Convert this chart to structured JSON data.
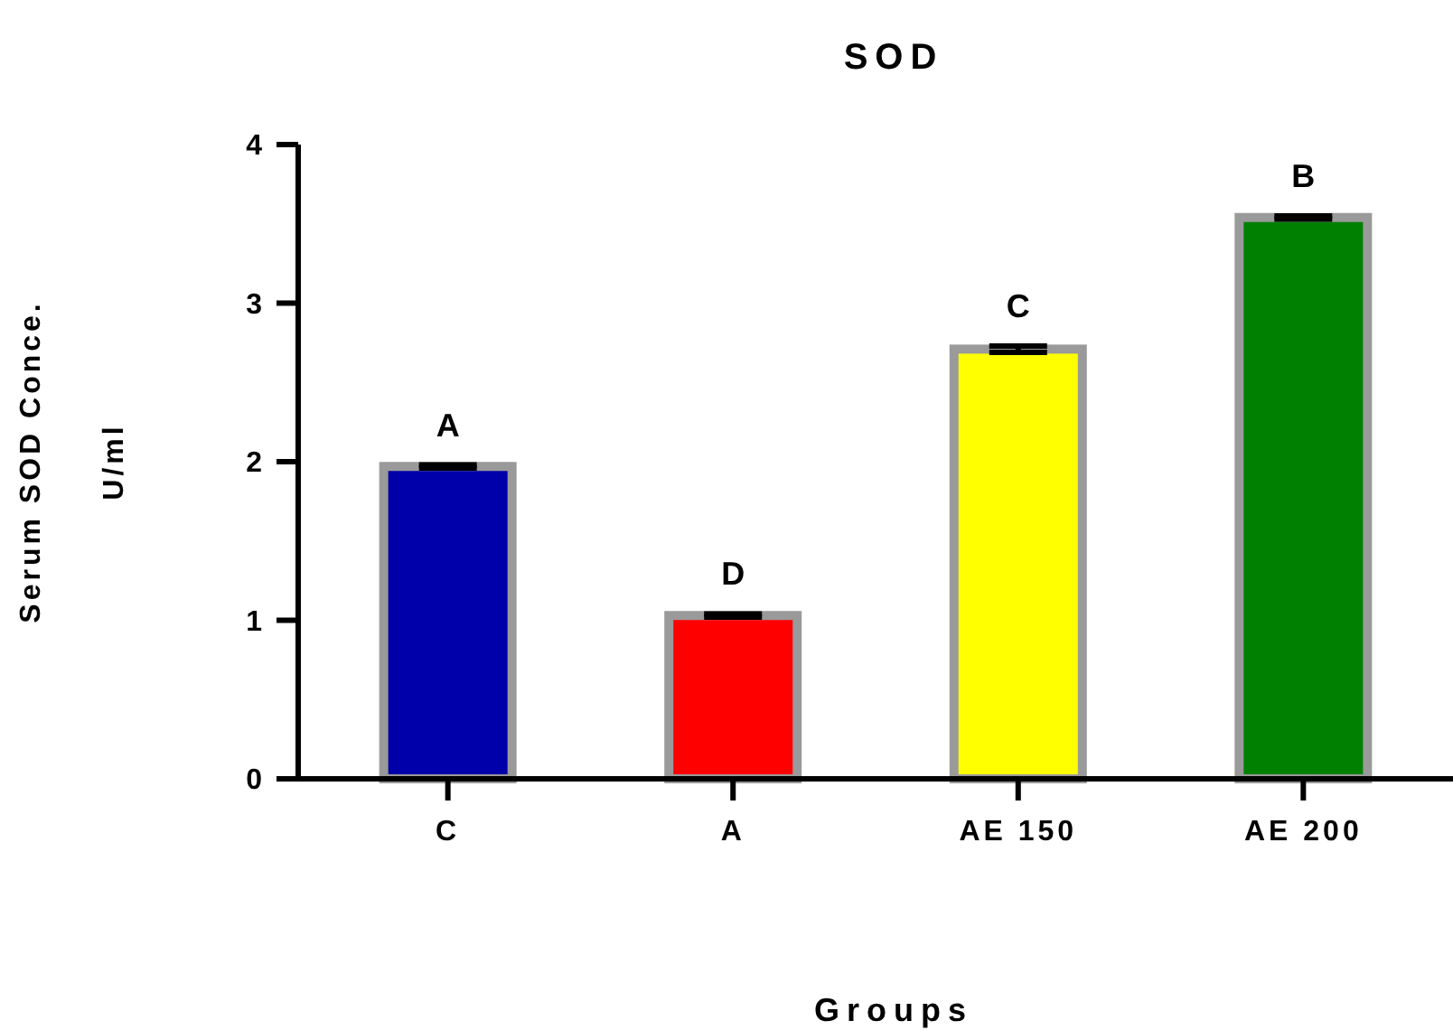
{
  "chart_data": {
    "type": "bar",
    "title": "SOD",
    "xlabel": "Groups",
    "ylabel": "Serum SOD Conce.\nU/ml",
    "categories": [
      "C",
      "A",
      "AE 150",
      "AE 200"
    ],
    "values": [
      1.97,
      1.03,
      2.71,
      3.54
    ],
    "colors": [
      "#0000aa",
      "#ff0000",
      "#ffff00",
      "#008000"
    ],
    "errors": [
      0.01,
      0.01,
      0.02,
      0.01
    ],
    "ylim": [
      0,
      4
    ],
    "yticks": [
      0,
      1,
      2,
      3,
      4
    ],
    "grid": false,
    "annotations": [
      {
        "text": "A",
        "x": "C",
        "y": 1.98
      },
      {
        "text": "D",
        "x": "A",
        "y": 1.04
      },
      {
        "text": "C",
        "x": "AE 150",
        "y": 2.73
      },
      {
        "text": "B",
        "x": "AE 200",
        "y": 3.55
      }
    ]
  }
}
